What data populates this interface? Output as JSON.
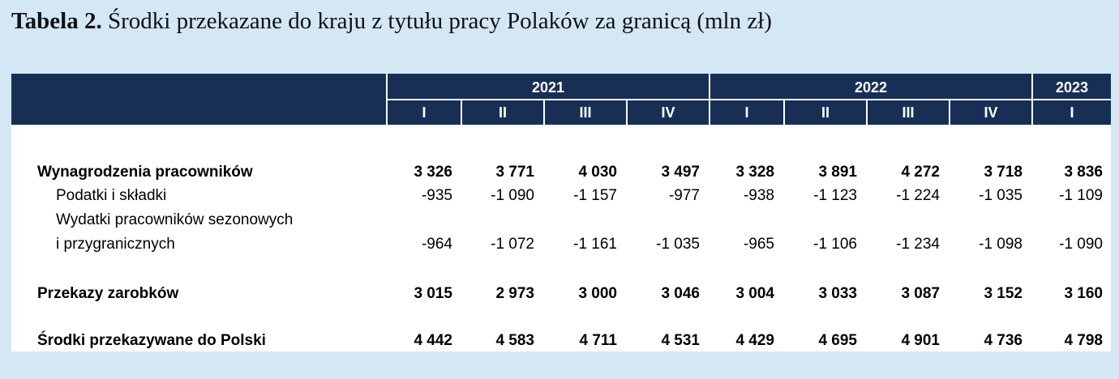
{
  "caption": {
    "prefix": "Tabela 2.",
    "title": "Środki przekazane do kraju z tytułu pracy Polaków za granicą (mln zł)"
  },
  "header": {
    "years": [
      "2021",
      "2022",
      "2023"
    ],
    "quarters": [
      "I",
      "II",
      "III",
      "IV",
      "I",
      "II",
      "III",
      "IV",
      "I"
    ]
  },
  "rows": [
    {
      "label": "Wynagrodzenia pracowników",
      "values": [
        "3 326",
        "3 771",
        "4 030",
        "3 497",
        "3 328",
        "3 891",
        "4 272",
        "3 718",
        "3 836"
      ]
    },
    {
      "label": "Podatki i składki",
      "values": [
        "-935",
        "-1 090",
        "-1 157",
        "-977",
        "-938",
        "-1 123",
        "-1 224",
        "-1 035",
        "-1 109"
      ]
    },
    {
      "label": "Wydatki pracowników sezonowych",
      "label2": "i przygranicznych",
      "values": [
        "-964",
        "-1 072",
        "-1 161",
        "-1 035",
        "-965",
        "-1 106",
        "-1 234",
        "-1 098",
        "-1 090"
      ]
    },
    {
      "label": "Przekazy zarobków",
      "values": [
        "3 015",
        "2 973",
        "3 000",
        "3 046",
        "3 004",
        "3 033",
        "3 087",
        "3 152",
        "3 160"
      ]
    },
    {
      "label": "Środki przekazywane do Polski",
      "values": [
        "4 442",
        "4 583",
        "4 711",
        "4 531",
        "4 429",
        "4 695",
        "4 901",
        "4 736",
        "4 798"
      ]
    }
  ]
}
